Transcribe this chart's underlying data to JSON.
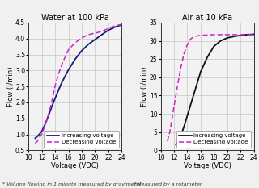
{
  "left": {
    "title": "Water at 100 kPa",
    "xlabel": "Voltage (VDC)",
    "ylabel": "Flow (l/min)",
    "xlim": [
      10,
      24
    ],
    "ylim": [
      0.5,
      4.5
    ],
    "xticks": [
      10,
      12,
      14,
      16,
      18,
      20,
      22,
      24
    ],
    "yticks": [
      0.5,
      1.0,
      1.5,
      2.0,
      2.5,
      3.0,
      3.5,
      4.0,
      4.5
    ],
    "inc_x": [
      11.0,
      11.3,
      11.6,
      12.0,
      12.5,
      13.0,
      13.5,
      14.0,
      14.5,
      15.0,
      15.5,
      16.0,
      17.0,
      18.0,
      19.0,
      20.0,
      21.0,
      22.0,
      23.0,
      24.0
    ],
    "inc_y": [
      0.88,
      0.93,
      1.0,
      1.1,
      1.32,
      1.58,
      1.87,
      2.13,
      2.38,
      2.62,
      2.82,
      3.02,
      3.35,
      3.62,
      3.82,
      3.97,
      4.12,
      4.26,
      4.36,
      4.43
    ],
    "dec_x": [
      11.0,
      11.3,
      11.6,
      12.0,
      12.5,
      13.0,
      13.5,
      14.0,
      14.5,
      15.0,
      15.5,
      16.0,
      17.0,
      18.0,
      19.0,
      20.0,
      21.0,
      22.0,
      23.0,
      24.0
    ],
    "dec_y": [
      0.72,
      0.78,
      0.88,
      1.02,
      1.28,
      1.62,
      2.02,
      2.52,
      2.88,
      3.18,
      3.42,
      3.65,
      3.87,
      4.02,
      4.12,
      4.17,
      4.22,
      4.32,
      4.4,
      4.44
    ],
    "footnote": "* Volume flowing in 1 minute measured by gravimetry"
  },
  "right": {
    "title": "Air at 10 kPa",
    "xlabel": "Voltage (VDC)",
    "ylabel": "Flow (l/min)",
    "xlim": [
      10,
      24
    ],
    "ylim": [
      0,
      35
    ],
    "xticks": [
      10,
      12,
      14,
      16,
      18,
      20,
      22,
      24
    ],
    "yticks": [
      0,
      5,
      10,
      15,
      20,
      25,
      30,
      35
    ],
    "inc_x": [
      12.3,
      12.6,
      13.0,
      13.5,
      14.0,
      14.5,
      15.0,
      15.5,
      16.0,
      17.0,
      18.0,
      19.0,
      20.0,
      21.0,
      22.0,
      23.0,
      24.0
    ],
    "inc_y": [
      1.5,
      2.5,
      4.0,
      6.5,
      9.5,
      12.5,
      15.5,
      18.5,
      21.5,
      25.5,
      28.5,
      30.0,
      30.8,
      31.2,
      31.5,
      31.7,
      31.8
    ],
    "dec_x": [
      11.0,
      11.3,
      11.6,
      12.0,
      12.5,
      13.0,
      13.5,
      14.0,
      14.5,
      15.0,
      16.0,
      17.0,
      18.0,
      19.0,
      20.0,
      21.0,
      22.0,
      23.0,
      24.0
    ],
    "dec_y": [
      2.5,
      4.5,
      7.5,
      12.0,
      17.5,
      22.5,
      26.5,
      29.0,
      30.5,
      31.2,
      31.5,
      31.6,
      31.7,
      31.7,
      31.7,
      31.7,
      31.7,
      31.7,
      31.7
    ],
    "footnote": "*Measured by a rotameter"
  },
  "inc_color_left": "#1a1a7a",
  "inc_color_right": "#111111",
  "dec_color": "#cc22cc",
  "bg_color": "#f2f2f2",
  "plot_bg_color": "#f2f2f2",
  "grid_color": "#cccccc",
  "legend_inc": "Increasing voltage",
  "legend_dec": "Decreasing voltage",
  "title_fontsize": 7,
  "label_fontsize": 6,
  "tick_fontsize": 5.5,
  "legend_fontsize": 5,
  "footnote_fontsize": 4.5
}
